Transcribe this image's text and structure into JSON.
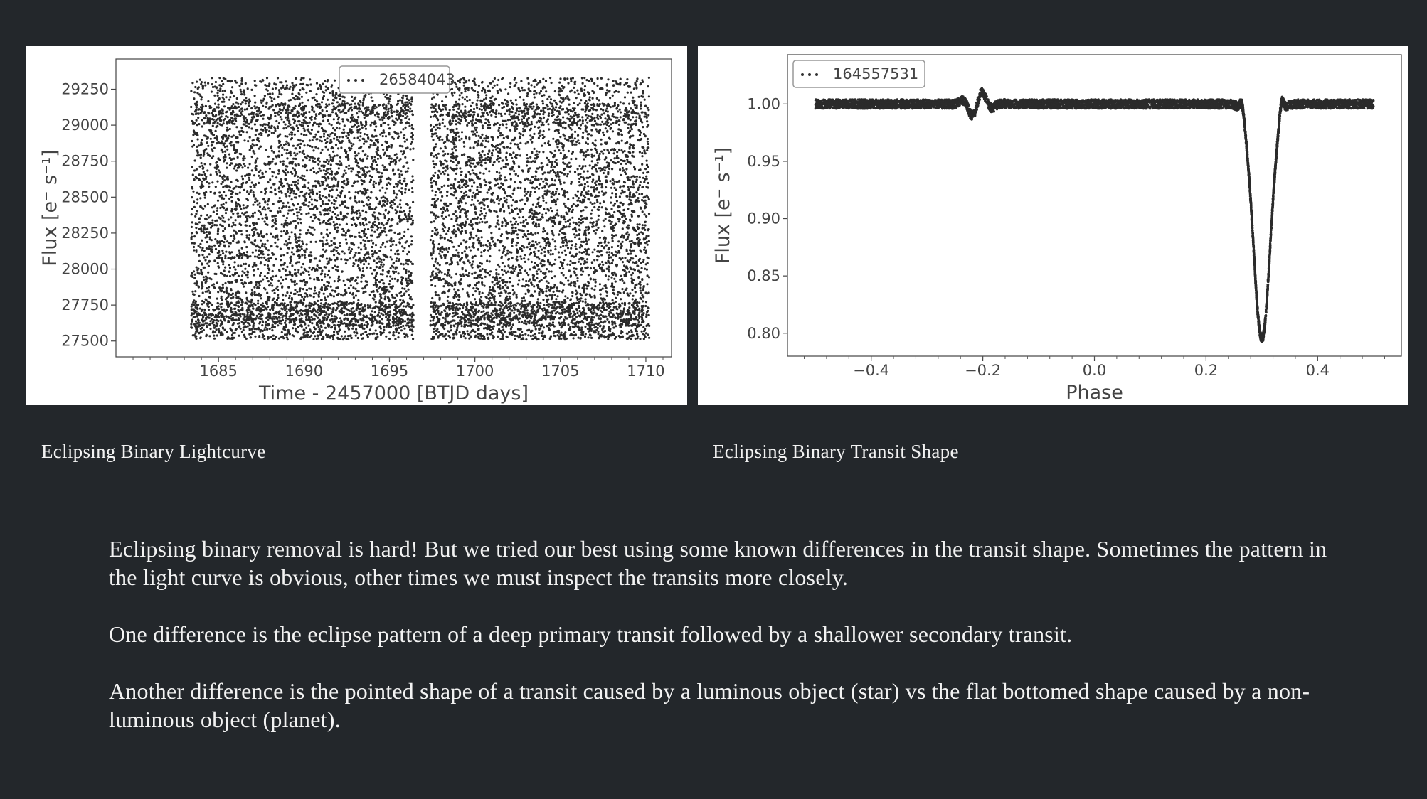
{
  "slide": {
    "captions": {
      "left": "Eclipsing Binary Lightcurve",
      "right": "Eclipsing Binary Transit Shape"
    },
    "paragraphs": [
      "Eclipsing binary removal is hard! But we tried our best using some known differences in the transit shape. Sometimes the pattern in the light curve is obvious, other times we must inspect the transits more closely.",
      "One difference is the eclipse pattern of a deep primary transit followed by a shallower secondary transit.",
      "Another difference is the pointed shape of a transit caused by a luminous object (star) vs the flat bottomed shape caused by a non-luminous object (planet)."
    ]
  },
  "chart_data": [
    {
      "type": "scatter",
      "xlabel": "Time - 2457000 [BTJD days]",
      "ylabel": "Flux [e⁻ s⁻¹]",
      "legend": "26584043",
      "legend_position": "top-center",
      "xlim": [
        1679,
        1711.5
      ],
      "ylim": [
        27390,
        29460
      ],
      "x_ticks": [
        1685,
        1690,
        1695,
        1700,
        1705,
        1710
      ],
      "y_ticks": [
        27500,
        27750,
        28000,
        28250,
        28500,
        28750,
        29000,
        29250
      ],
      "segments": [
        {
          "x_start": 1683.4,
          "x_end": 1696.4
        },
        {
          "x_start": 1697.4,
          "x_end": 1710.2
        }
      ],
      "flux_range": [
        27600,
        29300
      ],
      "color": "#2b2b2b"
    },
    {
      "type": "scatter",
      "xlabel": "Phase",
      "ylabel": "Flux [e⁻ s⁻¹]",
      "legend": "164557531",
      "legend_position": "top-left",
      "xlim": [
        -0.55,
        0.55
      ],
      "ylim": [
        0.78,
        1.043
      ],
      "x_ticks": [
        -0.4,
        -0.2,
        0.0,
        0.2,
        0.4
      ],
      "x_tick_labels": [
        "−0.4",
        "−0.2",
        "0.0",
        "0.2",
        "0.4"
      ],
      "y_ticks": [
        0.8,
        0.85,
        0.9,
        0.95,
        1.0
      ],
      "y_tick_labels": [
        "0.80",
        "0.85",
        "0.90",
        "0.95",
        "1.00"
      ],
      "baseline_flux": 1.0,
      "secondary_eclipse": {
        "phase": -0.21,
        "amplitude": 0.012
      },
      "primary_eclipse": {
        "phase": 0.3,
        "min_flux": 0.795,
        "width": 0.03
      },
      "color": "#2b2b2b"
    }
  ]
}
